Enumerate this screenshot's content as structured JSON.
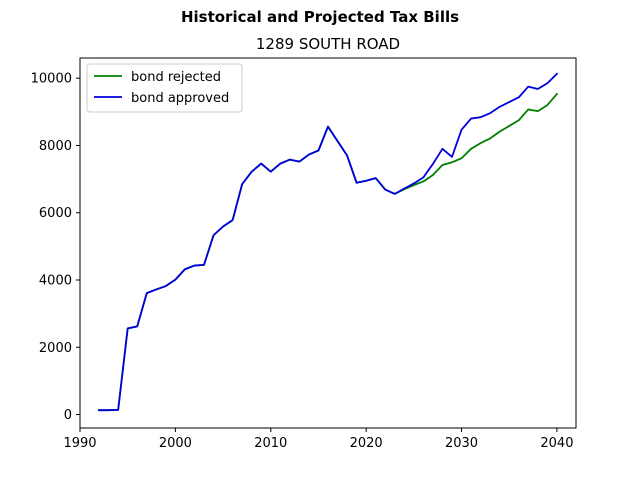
{
  "chart_data": {
    "type": "line",
    "suptitle": "Historical and Projected Tax Bills",
    "title": "1289 SOUTH ROAD",
    "xlabel": "",
    "ylabel": "",
    "xlim": [
      1990,
      2042
    ],
    "ylim": [
      -400,
      10600
    ],
    "x_ticks": [
      1990,
      2000,
      2010,
      2020,
      2030,
      2040
    ],
    "y_ticks": [
      0,
      2000,
      4000,
      6000,
      8000,
      10000
    ],
    "legend_position": "upper-left",
    "series": [
      {
        "name": "bond rejected",
        "color": "#008000",
        "x": [
          1992,
          1993,
          1994,
          1995,
          1996,
          1997,
          1998,
          1999,
          2000,
          2001,
          2002,
          2003,
          2004,
          2005,
          2006,
          2007,
          2008,
          2009,
          2010,
          2011,
          2012,
          2013,
          2014,
          2015,
          2016,
          2017,
          2018,
          2019,
          2020,
          2021,
          2022,
          2023,
          2024,
          2025,
          2026,
          2027,
          2028,
          2029,
          2030,
          2031,
          2032,
          2033,
          2034,
          2035,
          2036,
          2037,
          2038,
          2039,
          2040
        ],
        "values": [
          130,
          130,
          140,
          2560,
          2620,
          3610,
          3720,
          3820,
          4010,
          4320,
          4430,
          4450,
          5330,
          5590,
          5780,
          6850,
          7220,
          7460,
          7220,
          7460,
          7580,
          7520,
          7730,
          7850,
          8560,
          8130,
          7700,
          6890,
          6950,
          7030,
          6690,
          6560,
          6700,
          6820,
          6930,
          7120,
          7420,
          7500,
          7620,
          7900,
          8070,
          8210,
          8410,
          8580,
          8750,
          9070,
          9020,
          9200,
          9530
        ]
      },
      {
        "name": "bond approved",
        "color": "#0000e0",
        "x": [
          1992,
          1993,
          1994,
          1995,
          1996,
          1997,
          1998,
          1999,
          2000,
          2001,
          2002,
          2003,
          2004,
          2005,
          2006,
          2007,
          2008,
          2009,
          2010,
          2011,
          2012,
          2013,
          2014,
          2015,
          2016,
          2017,
          2018,
          2019,
          2020,
          2021,
          2022,
          2023,
          2024,
          2025,
          2026,
          2027,
          2028,
          2029,
          2030,
          2031,
          2032,
          2033,
          2034,
          2035,
          2036,
          2037,
          2038,
          2039,
          2040
        ],
        "values": [
          130,
          130,
          140,
          2560,
          2620,
          3610,
          3720,
          3820,
          4010,
          4320,
          4430,
          4450,
          5330,
          5590,
          5780,
          6850,
          7220,
          7460,
          7220,
          7460,
          7580,
          7520,
          7730,
          7850,
          8560,
          8130,
          7700,
          6890,
          6950,
          7030,
          6690,
          6560,
          6720,
          6870,
          7050,
          7450,
          7900,
          7660,
          8470,
          8800,
          8840,
          8960,
          9150,
          9290,
          9430,
          9750,
          9680,
          9850,
          10130
        ]
      }
    ]
  }
}
